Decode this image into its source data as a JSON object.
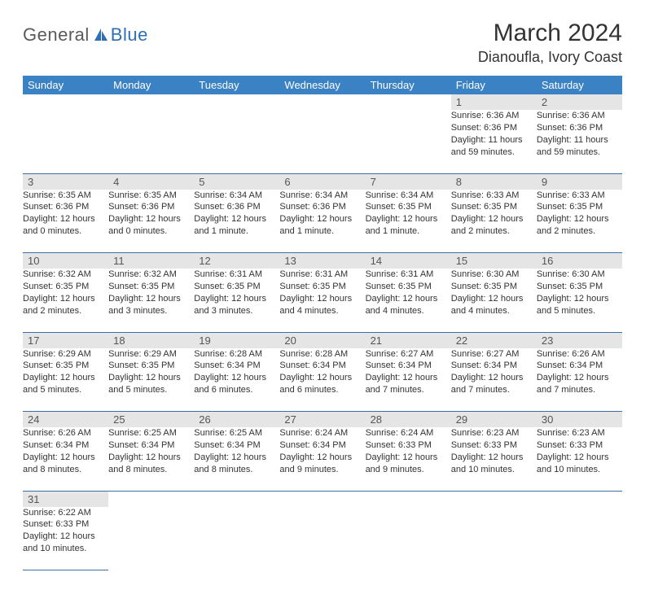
{
  "logo": {
    "part1": "General",
    "part2": "Blue"
  },
  "title": "March 2024",
  "location": "Dianoufla, Ivory Coast",
  "colors": {
    "header_bg": "#3b82c4",
    "row_divider": "#3b6fa8",
    "daynum_bg": "#e5e5e5",
    "logo_blue": "#2d6fb5",
    "logo_gray": "#5a5a5a"
  },
  "day_headers": [
    "Sunday",
    "Monday",
    "Tuesday",
    "Wednesday",
    "Thursday",
    "Friday",
    "Saturday"
  ],
  "weeks": [
    [
      null,
      null,
      null,
      null,
      null,
      {
        "n": "1",
        "sunrise": "Sunrise: 6:36 AM",
        "sunset": "Sunset: 6:36 PM",
        "daylight": "Daylight: 11 hours and 59 minutes."
      },
      {
        "n": "2",
        "sunrise": "Sunrise: 6:36 AM",
        "sunset": "Sunset: 6:36 PM",
        "daylight": "Daylight: 11 hours and 59 minutes."
      }
    ],
    [
      {
        "n": "3",
        "sunrise": "Sunrise: 6:35 AM",
        "sunset": "Sunset: 6:36 PM",
        "daylight": "Daylight: 12 hours and 0 minutes."
      },
      {
        "n": "4",
        "sunrise": "Sunrise: 6:35 AM",
        "sunset": "Sunset: 6:36 PM",
        "daylight": "Daylight: 12 hours and 0 minutes."
      },
      {
        "n": "5",
        "sunrise": "Sunrise: 6:34 AM",
        "sunset": "Sunset: 6:36 PM",
        "daylight": "Daylight: 12 hours and 1 minute."
      },
      {
        "n": "6",
        "sunrise": "Sunrise: 6:34 AM",
        "sunset": "Sunset: 6:36 PM",
        "daylight": "Daylight: 12 hours and 1 minute."
      },
      {
        "n": "7",
        "sunrise": "Sunrise: 6:34 AM",
        "sunset": "Sunset: 6:35 PM",
        "daylight": "Daylight: 12 hours and 1 minute."
      },
      {
        "n": "8",
        "sunrise": "Sunrise: 6:33 AM",
        "sunset": "Sunset: 6:35 PM",
        "daylight": "Daylight: 12 hours and 2 minutes."
      },
      {
        "n": "9",
        "sunrise": "Sunrise: 6:33 AM",
        "sunset": "Sunset: 6:35 PM",
        "daylight": "Daylight: 12 hours and 2 minutes."
      }
    ],
    [
      {
        "n": "10",
        "sunrise": "Sunrise: 6:32 AM",
        "sunset": "Sunset: 6:35 PM",
        "daylight": "Daylight: 12 hours and 2 minutes."
      },
      {
        "n": "11",
        "sunrise": "Sunrise: 6:32 AM",
        "sunset": "Sunset: 6:35 PM",
        "daylight": "Daylight: 12 hours and 3 minutes."
      },
      {
        "n": "12",
        "sunrise": "Sunrise: 6:31 AM",
        "sunset": "Sunset: 6:35 PM",
        "daylight": "Daylight: 12 hours and 3 minutes."
      },
      {
        "n": "13",
        "sunrise": "Sunrise: 6:31 AM",
        "sunset": "Sunset: 6:35 PM",
        "daylight": "Daylight: 12 hours and 4 minutes."
      },
      {
        "n": "14",
        "sunrise": "Sunrise: 6:31 AM",
        "sunset": "Sunset: 6:35 PM",
        "daylight": "Daylight: 12 hours and 4 minutes."
      },
      {
        "n": "15",
        "sunrise": "Sunrise: 6:30 AM",
        "sunset": "Sunset: 6:35 PM",
        "daylight": "Daylight: 12 hours and 4 minutes."
      },
      {
        "n": "16",
        "sunrise": "Sunrise: 6:30 AM",
        "sunset": "Sunset: 6:35 PM",
        "daylight": "Daylight: 12 hours and 5 minutes."
      }
    ],
    [
      {
        "n": "17",
        "sunrise": "Sunrise: 6:29 AM",
        "sunset": "Sunset: 6:35 PM",
        "daylight": "Daylight: 12 hours and 5 minutes."
      },
      {
        "n": "18",
        "sunrise": "Sunrise: 6:29 AM",
        "sunset": "Sunset: 6:35 PM",
        "daylight": "Daylight: 12 hours and 5 minutes."
      },
      {
        "n": "19",
        "sunrise": "Sunrise: 6:28 AM",
        "sunset": "Sunset: 6:34 PM",
        "daylight": "Daylight: 12 hours and 6 minutes."
      },
      {
        "n": "20",
        "sunrise": "Sunrise: 6:28 AM",
        "sunset": "Sunset: 6:34 PM",
        "daylight": "Daylight: 12 hours and 6 minutes."
      },
      {
        "n": "21",
        "sunrise": "Sunrise: 6:27 AM",
        "sunset": "Sunset: 6:34 PM",
        "daylight": "Daylight: 12 hours and 7 minutes."
      },
      {
        "n": "22",
        "sunrise": "Sunrise: 6:27 AM",
        "sunset": "Sunset: 6:34 PM",
        "daylight": "Daylight: 12 hours and 7 minutes."
      },
      {
        "n": "23",
        "sunrise": "Sunrise: 6:26 AM",
        "sunset": "Sunset: 6:34 PM",
        "daylight": "Daylight: 12 hours and 7 minutes."
      }
    ],
    [
      {
        "n": "24",
        "sunrise": "Sunrise: 6:26 AM",
        "sunset": "Sunset: 6:34 PM",
        "daylight": "Daylight: 12 hours and 8 minutes."
      },
      {
        "n": "25",
        "sunrise": "Sunrise: 6:25 AM",
        "sunset": "Sunset: 6:34 PM",
        "daylight": "Daylight: 12 hours and 8 minutes."
      },
      {
        "n": "26",
        "sunrise": "Sunrise: 6:25 AM",
        "sunset": "Sunset: 6:34 PM",
        "daylight": "Daylight: 12 hours and 8 minutes."
      },
      {
        "n": "27",
        "sunrise": "Sunrise: 6:24 AM",
        "sunset": "Sunset: 6:34 PM",
        "daylight": "Daylight: 12 hours and 9 minutes."
      },
      {
        "n": "28",
        "sunrise": "Sunrise: 6:24 AM",
        "sunset": "Sunset: 6:33 PM",
        "daylight": "Daylight: 12 hours and 9 minutes."
      },
      {
        "n": "29",
        "sunrise": "Sunrise: 6:23 AM",
        "sunset": "Sunset: 6:33 PM",
        "daylight": "Daylight: 12 hours and 10 minutes."
      },
      {
        "n": "30",
        "sunrise": "Sunrise: 6:23 AM",
        "sunset": "Sunset: 6:33 PM",
        "daylight": "Daylight: 12 hours and 10 minutes."
      }
    ],
    [
      {
        "n": "31",
        "sunrise": "Sunrise: 6:22 AM",
        "sunset": "Sunset: 6:33 PM",
        "daylight": "Daylight: 12 hours and 10 minutes."
      },
      null,
      null,
      null,
      null,
      null,
      null
    ]
  ]
}
